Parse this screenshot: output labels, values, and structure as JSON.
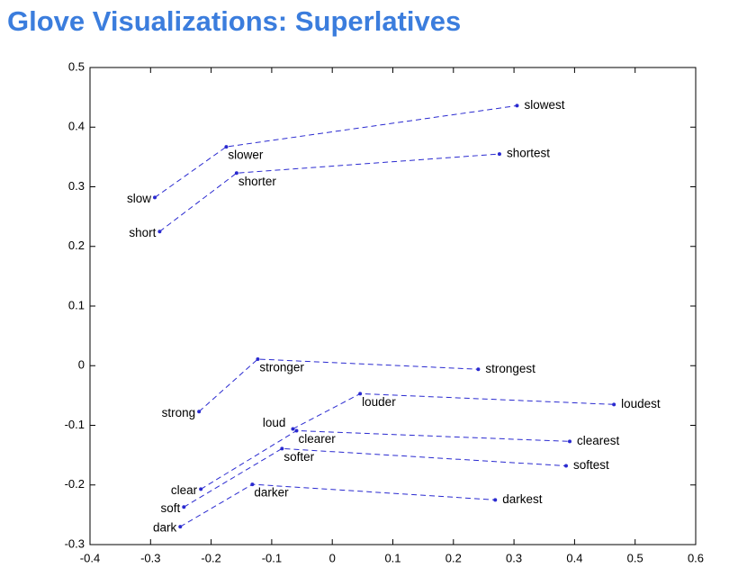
{
  "chart_data": {
    "type": "line",
    "title": "Glove Visualizations: Superlatives",
    "color": "#2a2ad0",
    "xlim": [
      -0.4,
      0.6
    ],
    "xticks": [
      -0.4,
      -0.3,
      -0.2,
      -0.1,
      0,
      0.1,
      0.2,
      0.3,
      0.4,
      0.5,
      0.6
    ],
    "ylim": [
      -0.3,
      0.5
    ],
    "yticks": [
      -0.3,
      -0.2,
      -0.1,
      0,
      0.1,
      0.2,
      0.3,
      0.4,
      0.5
    ],
    "groups": [
      {
        "labels": [
          "slow",
          "slower",
          "slowest"
        ],
        "x": [
          -0.293,
          -0.175,
          0.305
        ],
        "y": [
          0.282,
          0.367,
          0.436
        ]
      },
      {
        "labels": [
          "short",
          "shorter",
          "shortest"
        ],
        "x": [
          -0.285,
          -0.158,
          0.276
        ],
        "y": [
          0.225,
          0.323,
          0.355
        ]
      },
      {
        "labels": [
          "strong",
          "stronger",
          "strongest"
        ],
        "x": [
          -0.22,
          -0.123,
          0.241
        ],
        "y": [
          -0.077,
          0.011,
          -0.006
        ]
      },
      {
        "labels": [
          "loud",
          "louder",
          "loudest"
        ],
        "x": [
          -0.065,
          0.046,
          0.465
        ],
        "y": [
          -0.106,
          -0.047,
          -0.065
        ]
      },
      {
        "labels": [
          "clear",
          "clearer",
          "clearest"
        ],
        "x": [
          -0.217,
          -0.059,
          0.392
        ],
        "y": [
          -0.207,
          -0.109,
          -0.127
        ]
      },
      {
        "labels": [
          "soft",
          "softer",
          "softest"
        ],
        "x": [
          -0.245,
          -0.083,
          0.386
        ],
        "y": [
          -0.237,
          -0.139,
          -0.168
        ]
      },
      {
        "labels": [
          "dark",
          "darker",
          "darkest"
        ],
        "x": [
          -0.251,
          -0.132,
          0.269
        ],
        "y": [
          -0.27,
          -0.199,
          -0.225
        ]
      }
    ]
  }
}
